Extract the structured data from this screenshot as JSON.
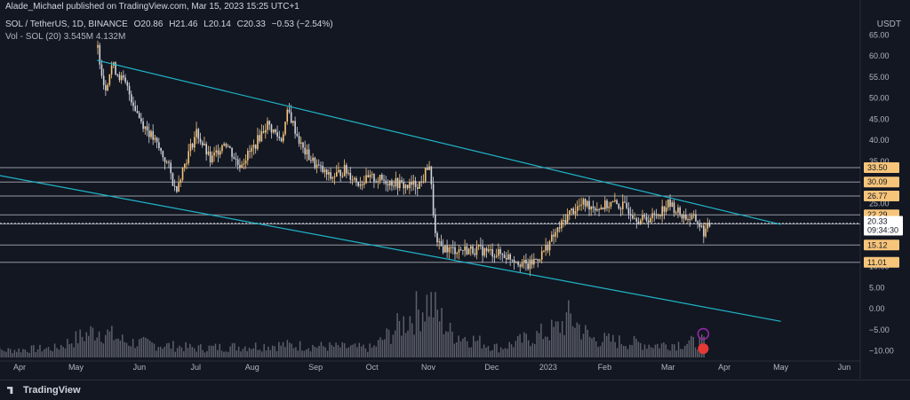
{
  "header": {
    "author_line": "Alade_Michael published on TradingView.com, Mar 15, 2023 15:25 UTC+1"
  },
  "symbol_bar": {
    "symbol": "SOL / TetherUS, 1D, BINANCE",
    "open": "O20.86",
    "high": "H21.46",
    "low": "L20.14",
    "close": "C20.33",
    "change": "−0.53 (−2.54%)"
  },
  "volume_bar": {
    "label": "Vol - SOL (20)",
    "v1": "3.545M",
    "v2": "4.132M"
  },
  "currency_label": "USDT",
  "footer": {
    "brand": "TradingView"
  },
  "colors": {
    "background": "#131722",
    "candle_up": "#f7c57a",
    "candle_down": "#d1d4dc",
    "channel": "#1fb5c8",
    "hline": "#9598a1",
    "volume": "#5d606b"
  },
  "chart_data": {
    "type": "candlestick",
    "y_axis_ticks": [
      "65.00",
      "60.00",
      "55.00",
      "50.00",
      "45.00",
      "40.00",
      "35.00",
      "30.00",
      "25.00",
      "20.00",
      "15.00",
      "10.00",
      "5.00",
      "0.00",
      "−5.00",
      "−10.00"
    ],
    "y_range": [
      -12,
      67
    ],
    "x_axis_labels": [
      "Apr",
      "May",
      "Jun",
      "Jul",
      "Aug",
      "Sep",
      "Oct",
      "Nov",
      "Dec",
      "2023",
      "Feb",
      "Mar",
      "Apr",
      "May",
      "Jun"
    ],
    "horizontal_levels": [
      "33.50",
      "30.09",
      "26.77",
      "22.29",
      "20.12",
      "15.12",
      "11.01"
    ],
    "current_price": "20.33",
    "countdown": "09:34:30",
    "price_path": [
      [
        2022.36,
        62
      ],
      [
        2022.37,
        52
      ],
      [
        2022.38,
        58
      ],
      [
        2022.4,
        53
      ],
      [
        2022.42,
        45
      ],
      [
        2022.44,
        40
      ],
      [
        2022.46,
        34
      ],
      [
        2022.47,
        28
      ],
      [
        2022.48,
        33
      ],
      [
        2022.5,
        42
      ],
      [
        2022.52,
        35
      ],
      [
        2022.54,
        40
      ],
      [
        2022.56,
        34
      ],
      [
        2022.58,
        38
      ],
      [
        2022.6,
        44
      ],
      [
        2022.62,
        40
      ],
      [
        2022.63,
        47
      ],
      [
        2022.65,
        38
      ],
      [
        2022.67,
        34
      ],
      [
        2022.69,
        31
      ],
      [
        2022.71,
        33
      ],
      [
        2022.73,
        30
      ],
      [
        2022.75,
        31
      ],
      [
        2022.78,
        30
      ],
      [
        2022.8,
        29
      ],
      [
        2022.82,
        30
      ],
      [
        2022.83,
        35
      ],
      [
        2022.84,
        15
      ],
      [
        2022.86,
        14
      ],
      [
        2022.88,
        14
      ],
      [
        2022.9,
        14
      ],
      [
        2022.93,
        13
      ],
      [
        2022.95,
        12
      ],
      [
        2022.97,
        10
      ],
      [
        2022.99,
        13
      ],
      [
        2023.01,
        18
      ],
      [
        2023.03,
        23
      ],
      [
        2023.05,
        25
      ],
      [
        2023.07,
        24
      ],
      [
        2023.09,
        25
      ],
      [
        2023.11,
        24
      ],
      [
        2023.13,
        21
      ],
      [
        2023.15,
        22
      ],
      [
        2023.17,
        25
      ],
      [
        2023.19,
        22
      ],
      [
        2023.21,
        21
      ],
      [
        2023.22,
        18
      ],
      [
        2023.23,
        20.3
      ]
    ],
    "channel_upper": [
      [
        2022.36,
        59
      ],
      [
        2023.33,
        20
      ]
    ],
    "channel_lower": [
      [
        2022.21,
        32
      ],
      [
        2023.33,
        -3
      ]
    ],
    "volume_profile": [
      [
        2022.2,
        2
      ],
      [
        2022.3,
        3
      ],
      [
        2022.36,
        9
      ],
      [
        2022.4,
        5
      ],
      [
        2022.5,
        3
      ],
      [
        2022.62,
        4
      ],
      [
        2022.75,
        3
      ],
      [
        2022.83,
        18
      ],
      [
        2022.86,
        8
      ],
      [
        2022.93,
        3
      ],
      [
        2023.01,
        9
      ],
      [
        2023.03,
        13
      ],
      [
        2023.06,
        6
      ],
      [
        2023.15,
        4
      ],
      [
        2023.22,
        5
      ]
    ]
  }
}
